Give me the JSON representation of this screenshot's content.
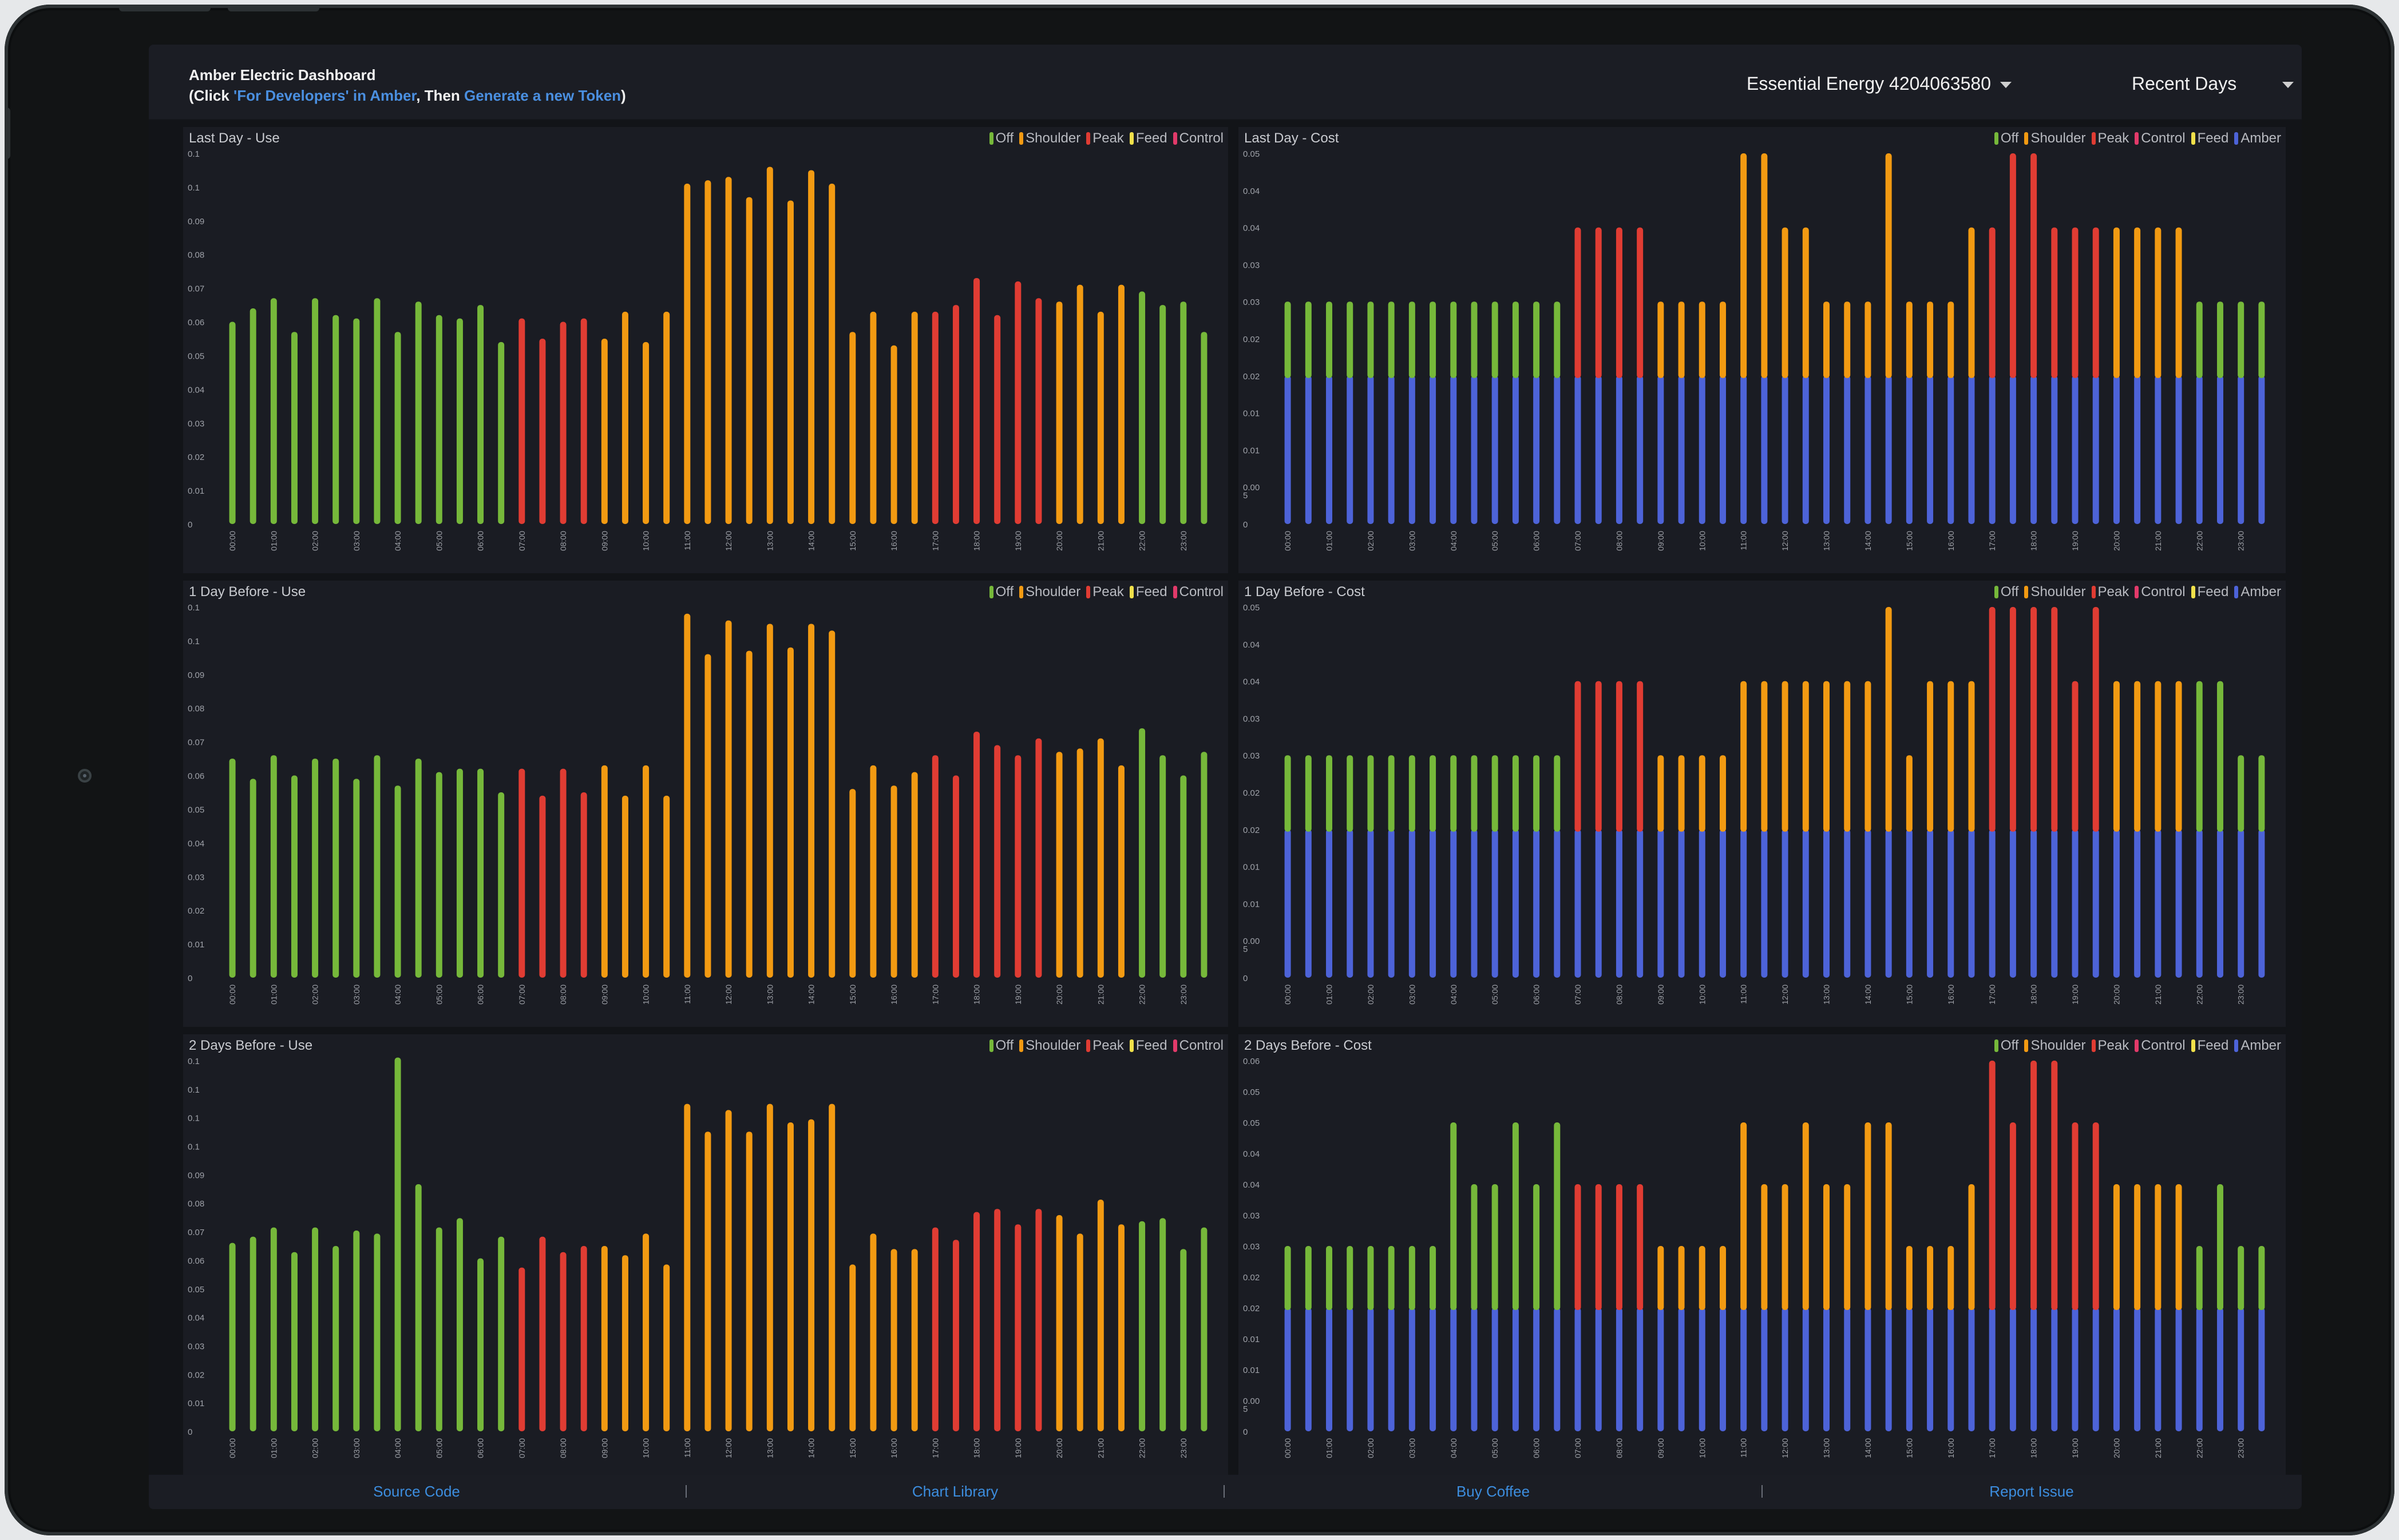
{
  "header": {
    "title": "Amber Electric Dashboard",
    "sub_prefix": "(Click ",
    "sub_link1": "'For Developers' in Amber",
    "sub_middle": ", Then ",
    "sub_link2": "Generate a new Token",
    "sub_suffix": ")",
    "site_select": "Essential Energy 4204063580",
    "range_select": "Recent Days"
  },
  "colors": {
    "off": "#76b83a",
    "shoulder": "#f29a12",
    "peak": "#e03c33",
    "feed": "#f0e04a",
    "control": "#e23a6a",
    "amber": "#4d63d8"
  },
  "hours": [
    "00:00",
    "01:00",
    "02:00",
    "03:00",
    "04:00",
    "05:00",
    "06:00",
    "07:00",
    "08:00",
    "09:00",
    "10:00",
    "11:00",
    "12:00",
    "13:00",
    "14:00",
    "15:00",
    "16:00",
    "17:00",
    "18:00",
    "19:00",
    "20:00",
    "21:00",
    "22:00",
    "23:00"
  ],
  "use_legend": [
    "Off",
    "Shoulder",
    "Peak",
    "Feed",
    "Control"
  ],
  "cost_legend": [
    "Off",
    "Shoulder",
    "Peak",
    "Control",
    "Feed",
    "Amber"
  ],
  "panels": [
    {
      "title": "Last Day - Use"
    },
    {
      "title": "Last Day - Cost"
    },
    {
      "title": "1 Day Before - Use"
    },
    {
      "title": "1 Day Before - Cost"
    },
    {
      "title": "2 Days Before - Use"
    },
    {
      "title": "2 Days Before - Cost"
    }
  ],
  "chart_data": [
    {
      "type": "bar",
      "title": "Last Day - Use",
      "y_ticks": [
        "0",
        "0.01",
        "0.02",
        "0.03",
        "0.04",
        "0.05",
        "0.06",
        "0.07",
        "0.08",
        "0.09",
        "0.1",
        "0.1"
      ],
      "ylim": [
        0,
        0.11
      ],
      "values": [
        0.06,
        0.064,
        0.067,
        0.057,
        0.067,
        0.062,
        0.061,
        0.067,
        0.057,
        0.066,
        0.062,
        0.061,
        0.065,
        0.054,
        0.061,
        0.055,
        0.06,
        0.061,
        0.055,
        0.063,
        0.054,
        0.063,
        0.101,
        0.102,
        0.103,
        0.097,
        0.106,
        0.096,
        0.105,
        0.101,
        0.057,
        0.063,
        0.053,
        0.063,
        0.063,
        0.065,
        0.073,
        0.062,
        0.072,
        0.067,
        0.066,
        0.071,
        0.063,
        0.071,
        0.069,
        0.065,
        0.066,
        0.057
      ],
      "category": [
        "off",
        "off",
        "off",
        "off",
        "off",
        "off",
        "off",
        "off",
        "off",
        "off",
        "off",
        "off",
        "off",
        "off",
        "peak",
        "peak",
        "peak",
        "peak",
        "shoulder",
        "shoulder",
        "shoulder",
        "shoulder",
        "shoulder",
        "shoulder",
        "shoulder",
        "shoulder",
        "shoulder",
        "shoulder",
        "shoulder",
        "shoulder",
        "shoulder",
        "shoulder",
        "shoulder",
        "shoulder",
        "peak",
        "peak",
        "peak",
        "peak",
        "peak",
        "peak",
        "shoulder",
        "shoulder",
        "shoulder",
        "shoulder",
        "off",
        "off",
        "off",
        "off"
      ]
    },
    {
      "type": "bar",
      "stacked": true,
      "title": "Last Day - Cost",
      "y_ticks": [
        "0",
        "0.00\n5",
        "0.01",
        "0.01",
        "0.02",
        "0.02",
        "0.03",
        "0.03",
        "0.04",
        "0.04",
        "0.05"
      ],
      "ylim": [
        0,
        0.05
      ],
      "amber_base": 0.02,
      "values": [
        0.03,
        0.03,
        0.03,
        0.03,
        0.03,
        0.03,
        0.03,
        0.03,
        0.03,
        0.03,
        0.03,
        0.03,
        0.03,
        0.03,
        0.04,
        0.04,
        0.04,
        0.04,
        0.03,
        0.03,
        0.03,
        0.03,
        0.05,
        0.05,
        0.04,
        0.04,
        0.03,
        0.03,
        0.03,
        0.05,
        0.03,
        0.03,
        0.03,
        0.04,
        0.04,
        0.05,
        0.05,
        0.04,
        0.04,
        0.04,
        0.04,
        0.04,
        0.04,
        0.04,
        0.03,
        0.03,
        0.03,
        0.03
      ],
      "category": [
        "off",
        "off",
        "off",
        "off",
        "off",
        "off",
        "off",
        "off",
        "off",
        "off",
        "off",
        "off",
        "off",
        "off",
        "peak",
        "peak",
        "peak",
        "peak",
        "shoulder",
        "shoulder",
        "shoulder",
        "shoulder",
        "shoulder",
        "shoulder",
        "shoulder",
        "shoulder",
        "shoulder",
        "shoulder",
        "shoulder",
        "shoulder",
        "shoulder",
        "shoulder",
        "shoulder",
        "shoulder",
        "peak",
        "peak",
        "peak",
        "peak",
        "peak",
        "peak",
        "shoulder",
        "shoulder",
        "shoulder",
        "shoulder",
        "off",
        "off",
        "off",
        "off"
      ]
    },
    {
      "type": "bar",
      "title": "1 Day Before - Use",
      "y_ticks": [
        "0",
        "0.01",
        "0.02",
        "0.03",
        "0.04",
        "0.05",
        "0.06",
        "0.07",
        "0.08",
        "0.09",
        "0.1",
        "0.1"
      ],
      "ylim": [
        0,
        0.11
      ],
      "values": [
        0.065,
        0.059,
        0.066,
        0.06,
        0.065,
        0.065,
        0.059,
        0.066,
        0.057,
        0.065,
        0.061,
        0.062,
        0.062,
        0.055,
        0.062,
        0.054,
        0.062,
        0.055,
        0.063,
        0.054,
        0.063,
        0.054,
        0.108,
        0.096,
        0.106,
        0.097,
        0.105,
        0.098,
        0.105,
        0.103,
        0.056,
        0.063,
        0.057,
        0.061,
        0.066,
        0.06,
        0.073,
        0.069,
        0.066,
        0.071,
        0.067,
        0.068,
        0.071,
        0.063,
        0.074,
        0.066,
        0.06,
        0.067
      ],
      "category": [
        "off",
        "off",
        "off",
        "off",
        "off",
        "off",
        "off",
        "off",
        "off",
        "off",
        "off",
        "off",
        "off",
        "off",
        "peak",
        "peak",
        "peak",
        "peak",
        "shoulder",
        "shoulder",
        "shoulder",
        "shoulder",
        "shoulder",
        "shoulder",
        "shoulder",
        "shoulder",
        "shoulder",
        "shoulder",
        "shoulder",
        "shoulder",
        "shoulder",
        "shoulder",
        "shoulder",
        "shoulder",
        "peak",
        "peak",
        "peak",
        "peak",
        "peak",
        "peak",
        "shoulder",
        "shoulder",
        "shoulder",
        "shoulder",
        "off",
        "off",
        "off",
        "off"
      ]
    },
    {
      "type": "bar",
      "stacked": true,
      "title": "1 Day Before - Cost",
      "y_ticks": [
        "0",
        "0.00\n5",
        "0.01",
        "0.01",
        "0.02",
        "0.02",
        "0.03",
        "0.03",
        "0.04",
        "0.04",
        "0.05"
      ],
      "ylim": [
        0,
        0.05
      ],
      "amber_base": 0.02,
      "values": [
        0.03,
        0.03,
        0.03,
        0.03,
        0.03,
        0.03,
        0.03,
        0.03,
        0.03,
        0.03,
        0.03,
        0.03,
        0.03,
        0.03,
        0.04,
        0.04,
        0.04,
        0.04,
        0.03,
        0.03,
        0.03,
        0.03,
        0.04,
        0.04,
        0.04,
        0.04,
        0.04,
        0.04,
        0.04,
        0.05,
        0.03,
        0.04,
        0.04,
        0.04,
        0.05,
        0.05,
        0.05,
        0.05,
        0.04,
        0.05,
        0.04,
        0.04,
        0.04,
        0.04,
        0.04,
        0.04,
        0.03,
        0.03
      ],
      "category": [
        "off",
        "off",
        "off",
        "off",
        "off",
        "off",
        "off",
        "off",
        "off",
        "off",
        "off",
        "off",
        "off",
        "off",
        "peak",
        "peak",
        "peak",
        "peak",
        "shoulder",
        "shoulder",
        "shoulder",
        "shoulder",
        "shoulder",
        "shoulder",
        "shoulder",
        "shoulder",
        "shoulder",
        "shoulder",
        "shoulder",
        "shoulder",
        "shoulder",
        "shoulder",
        "shoulder",
        "shoulder",
        "peak",
        "peak",
        "peak",
        "peak",
        "peak",
        "peak",
        "shoulder",
        "shoulder",
        "shoulder",
        "shoulder",
        "off",
        "off",
        "off",
        "off"
      ]
    },
    {
      "type": "bar",
      "title": "2 Days Before - Use",
      "y_ticks": [
        "0",
        "0.01",
        "0.02",
        "0.03",
        "0.04",
        "0.05",
        "0.06",
        "0.07",
        "0.08",
        "0.09",
        "0.1",
        "0.1",
        "0.1",
        "0.1"
      ],
      "ylim": [
        0,
        0.12
      ],
      "values": [
        0.061,
        0.063,
        0.066,
        0.058,
        0.066,
        0.06,
        0.065,
        0.064,
        0.121,
        0.08,
        0.066,
        0.069,
        0.056,
        0.063,
        0.053,
        0.063,
        0.058,
        0.06,
        0.06,
        0.057,
        0.064,
        0.054,
        0.106,
        0.097,
        0.104,
        0.097,
        0.106,
        0.1,
        0.101,
        0.106,
        0.054,
        0.064,
        0.059,
        0.059,
        0.066,
        0.062,
        0.071,
        0.072,
        0.067,
        0.072,
        0.07,
        0.064,
        0.075,
        0.067,
        0.068,
        0.069,
        0.059,
        0.066
      ],
      "category": [
        "off",
        "off",
        "off",
        "off",
        "off",
        "off",
        "off",
        "off",
        "off",
        "off",
        "off",
        "off",
        "off",
        "off",
        "peak",
        "peak",
        "peak",
        "peak",
        "shoulder",
        "shoulder",
        "shoulder",
        "shoulder",
        "shoulder",
        "shoulder",
        "shoulder",
        "shoulder",
        "shoulder",
        "shoulder",
        "shoulder",
        "shoulder",
        "shoulder",
        "shoulder",
        "shoulder",
        "shoulder",
        "peak",
        "peak",
        "peak",
        "peak",
        "peak",
        "peak",
        "shoulder",
        "shoulder",
        "shoulder",
        "shoulder",
        "off",
        "off",
        "off",
        "off"
      ]
    },
    {
      "type": "bar",
      "stacked": true,
      "title": "2 Days Before - Cost",
      "y_ticks": [
        "0",
        "0.00\n5",
        "0.01",
        "0.01",
        "0.02",
        "0.02",
        "0.03",
        "0.03",
        "0.04",
        "0.04",
        "0.05",
        "0.05",
        "0.06"
      ],
      "ylim": [
        0,
        0.06
      ],
      "amber_base": 0.02,
      "values": [
        0.03,
        0.03,
        0.03,
        0.03,
        0.03,
        0.03,
        0.03,
        0.03,
        0.05,
        0.04,
        0.04,
        0.05,
        0.04,
        0.05,
        0.04,
        0.04,
        0.04,
        0.04,
        0.03,
        0.03,
        0.03,
        0.03,
        0.05,
        0.04,
        0.04,
        0.05,
        0.04,
        0.04,
        0.05,
        0.05,
        0.03,
        0.03,
        0.03,
        0.04,
        0.06,
        0.05,
        0.06,
        0.06,
        0.05,
        0.05,
        0.04,
        0.04,
        0.04,
        0.04,
        0.03,
        0.04,
        0.03,
        0.03
      ],
      "category": [
        "off",
        "off",
        "off",
        "off",
        "off",
        "off",
        "off",
        "off",
        "off",
        "off",
        "off",
        "off",
        "off",
        "off",
        "peak",
        "peak",
        "peak",
        "peak",
        "shoulder",
        "shoulder",
        "shoulder",
        "shoulder",
        "shoulder",
        "shoulder",
        "shoulder",
        "shoulder",
        "shoulder",
        "shoulder",
        "shoulder",
        "shoulder",
        "shoulder",
        "shoulder",
        "shoulder",
        "shoulder",
        "peak",
        "peak",
        "peak",
        "peak",
        "peak",
        "peak",
        "shoulder",
        "shoulder",
        "shoulder",
        "shoulder",
        "off",
        "off",
        "off",
        "off"
      ]
    }
  ],
  "footer": {
    "links": [
      "Source Code",
      "Chart Library",
      "Buy Coffee",
      "Report Issue"
    ]
  }
}
